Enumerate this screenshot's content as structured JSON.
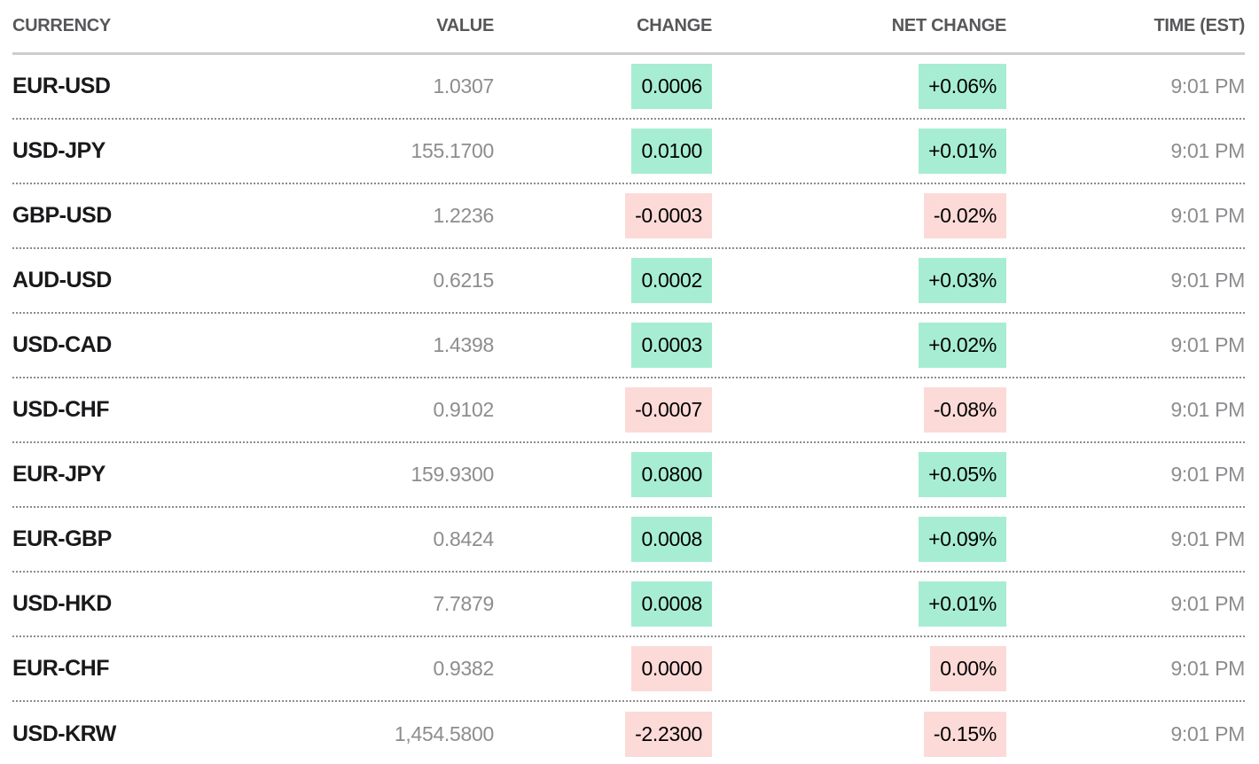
{
  "colors": {
    "positive_bg": "#a7edd3",
    "negative_bg": "#fbdad7",
    "header_text": "#57575a",
    "pair_text": "#19191b",
    "muted_text": "#8d8d90"
  },
  "table": {
    "columns": [
      {
        "key": "currency",
        "label": "CURRENCY"
      },
      {
        "key": "value",
        "label": "VALUE"
      },
      {
        "key": "change",
        "label": "CHANGE"
      },
      {
        "key": "net_change",
        "label": "NET CHANGE"
      },
      {
        "key": "time",
        "label": "TIME (EST)"
      }
    ],
    "rows": [
      {
        "currency": "EUR-USD",
        "value": "1.0307",
        "change": "0.0006",
        "net_change": "+0.06%",
        "time": "9:01 PM",
        "direction": "up"
      },
      {
        "currency": "USD-JPY",
        "value": "155.1700",
        "change": "0.0100",
        "net_change": "+0.01%",
        "time": "9:01 PM",
        "direction": "up"
      },
      {
        "currency": "GBP-USD",
        "value": "1.2236",
        "change": "-0.0003",
        "net_change": "-0.02%",
        "time": "9:01 PM",
        "direction": "down"
      },
      {
        "currency": "AUD-USD",
        "value": "0.6215",
        "change": "0.0002",
        "net_change": "+0.03%",
        "time": "9:01 PM",
        "direction": "up"
      },
      {
        "currency": "USD-CAD",
        "value": "1.4398",
        "change": "0.0003",
        "net_change": "+0.02%",
        "time": "9:01 PM",
        "direction": "up"
      },
      {
        "currency": "USD-CHF",
        "value": "0.9102",
        "change": "-0.0007",
        "net_change": "-0.08%",
        "time": "9:01 PM",
        "direction": "down"
      },
      {
        "currency": "EUR-JPY",
        "value": "159.9300",
        "change": "0.0800",
        "net_change": "+0.05%",
        "time": "9:01 PM",
        "direction": "up"
      },
      {
        "currency": "EUR-GBP",
        "value": "0.8424",
        "change": "0.0008",
        "net_change": "+0.09%",
        "time": "9:01 PM",
        "direction": "up"
      },
      {
        "currency": "USD-HKD",
        "value": "7.7879",
        "change": "0.0008",
        "net_change": "+0.01%",
        "time": "9:01 PM",
        "direction": "up"
      },
      {
        "currency": "EUR-CHF",
        "value": "0.9382",
        "change": "0.0000",
        "net_change": "0.00%",
        "time": "9:01 PM",
        "direction": "down"
      },
      {
        "currency": "USD-KRW",
        "value": "1,454.5800",
        "change": "-2.2300",
        "net_change": "-0.15%",
        "time": "9:01 PM",
        "direction": "down"
      }
    ]
  }
}
